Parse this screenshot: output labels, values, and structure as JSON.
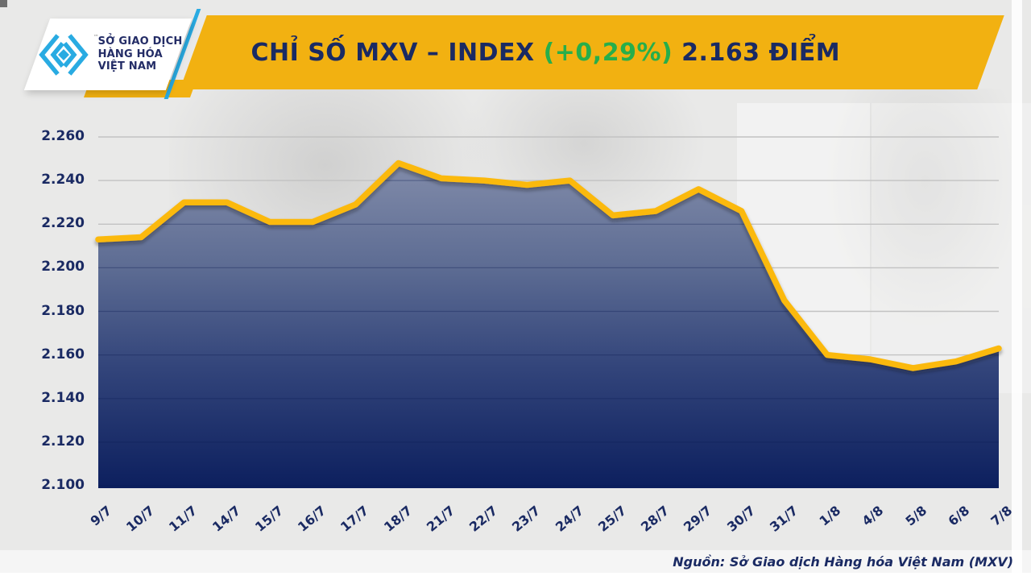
{
  "header": {
    "logo": {
      "line1": "SỞ GIAO DỊCH",
      "line2": "HÀNG HÓA",
      "line3": "VIỆT NAM",
      "trademark": "™"
    },
    "title": {
      "main": "CHỈ SỐ MXV – INDEX ",
      "change": "(+0,29%)",
      "value": " 2.163 ĐIỂM"
    }
  },
  "footer": {
    "source": "Nguồn: Sở Giao dịch Hàng hóa Việt Nam (MXV)"
  },
  "colors": {
    "banner_gold": "#F2B111",
    "line_gold": "#FBB90F",
    "navy_text": "#1A2A63",
    "green_change": "#27AE4B",
    "logo_cyan": "#29ABE2",
    "grid_gray": "#c2c2c2",
    "background_gray": "#e9e9e8",
    "fill_top": "#8A93AF",
    "fill_mid1": "#5D6C93",
    "fill_mid2": "#33457B",
    "fill_bottom": "#0C1F5E"
  },
  "chart_data": {
    "type": "area",
    "title": "CHỈ SỐ MXV – INDEX (+0,29%) 2.163 ĐIỂM",
    "xlabel": "",
    "ylabel": "",
    "categories": [
      "9/7",
      "10/7",
      "11/7",
      "14/7",
      "15/7",
      "16/7",
      "17/7",
      "18/7",
      "21/7",
      "22/7",
      "23/7",
      "24/7",
      "25/7",
      "28/7",
      "29/7",
      "30/7",
      "31/7",
      "1/8",
      "4/8",
      "5/8",
      "6/8",
      "7/8"
    ],
    "values": [
      2213,
      2214,
      2230,
      2230,
      2221,
      2221,
      2229,
      2248,
      2241,
      2240,
      2238,
      2240,
      2224,
      2226,
      2236,
      2226,
      2185,
      2160,
      2158,
      2154,
      2157,
      2163
    ],
    "ylim": [
      2100,
      2260
    ],
    "ytick_step": 20,
    "ytick_labels": [
      "2.260",
      "2.240",
      "2.220",
      "2.200",
      "2.180",
      "2.160",
      "2.140",
      "2.120",
      "2.100"
    ],
    "grid": "horizontal",
    "legend_position": "none",
    "last_point_label": "2.163",
    "change_percent": "+0,29%"
  }
}
